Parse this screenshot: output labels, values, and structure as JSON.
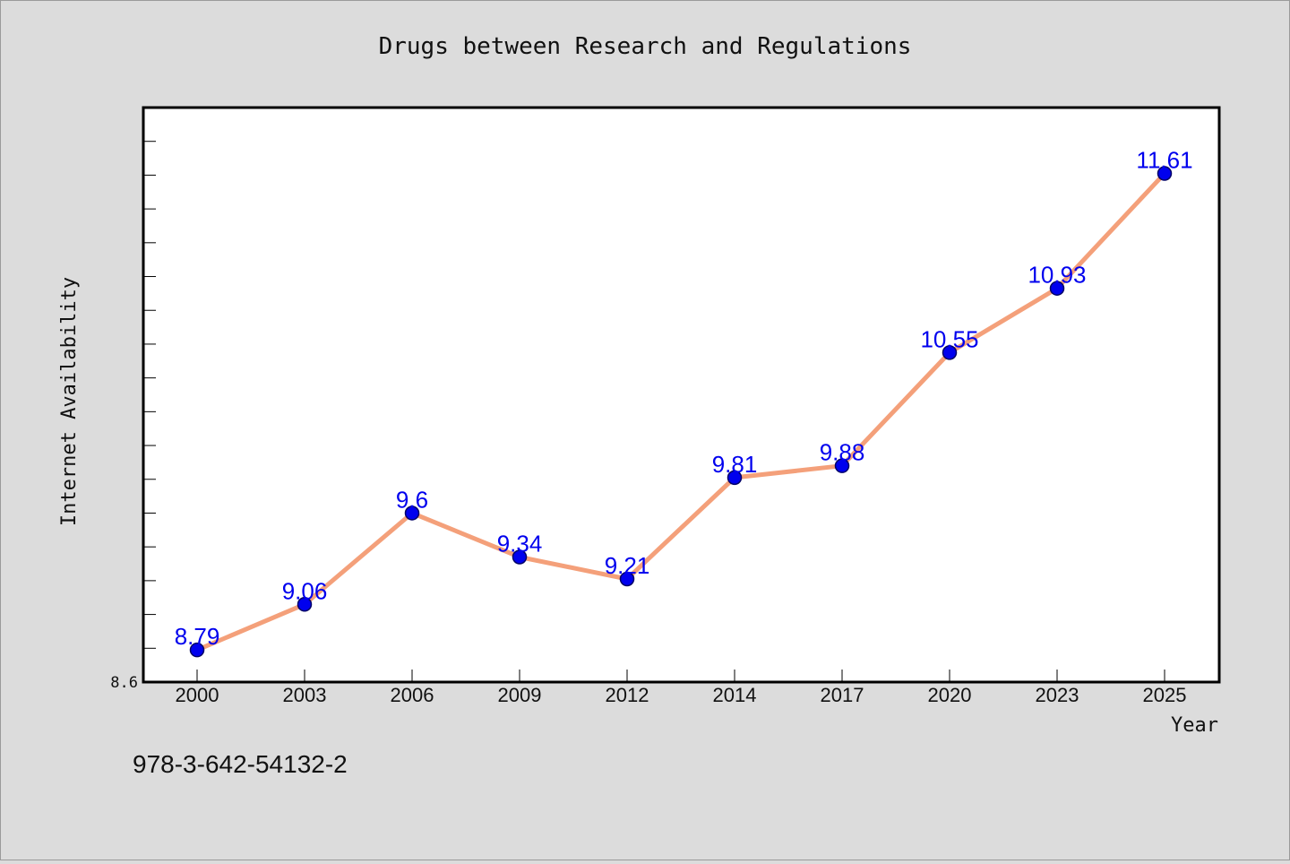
{
  "footer": {
    "isbn": "978-3-642-54132-2"
  },
  "colors": {
    "background": "#dcdcdc",
    "plot_background": "#ffffff",
    "line": "#f4a07a",
    "marker": "#0000ee",
    "label": "#0000ee"
  },
  "chart_data": {
    "type": "line",
    "title": "Drugs between Research and Regulations",
    "xlabel": "Year",
    "ylabel": "Internet Availability",
    "categories": [
      "2000",
      "2003",
      "2006",
      "2009",
      "2012",
      "2014",
      "2017",
      "2020",
      "2023",
      "2025"
    ],
    "series": [
      {
        "values": [
          8.79,
          9.06,
          9.6,
          9.34,
          9.21,
          9.81,
          9.88,
          10.55,
          10.93,
          11.61
        ]
      }
    ],
    "ytick_labels": [
      "8.6"
    ],
    "ylim": [
      8.6,
      12.0
    ],
    "y_minor_tick_step": 0.2,
    "grid": false,
    "legend": "none",
    "data_labels": true,
    "markers": "circle"
  }
}
